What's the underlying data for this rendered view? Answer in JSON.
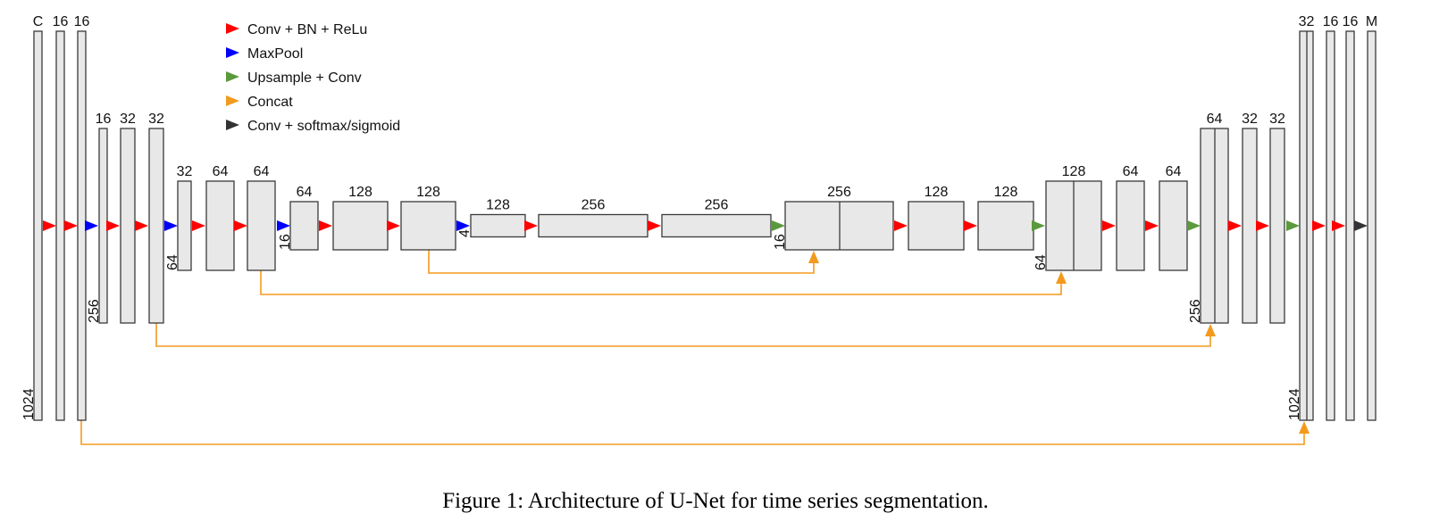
{
  "caption": "Figure 1: Architecture of U-Net for time series segmentation.",
  "colors": {
    "conv_bn_relu": "#ff0000",
    "maxpool": "#0000ff",
    "upsample_conv": "#5a9a3c",
    "concat": "#f39a1e",
    "conv_softmax": "#333333",
    "block_fill": "#e8e8e8"
  },
  "legend": [
    {
      "label": "Conv + BN + ReLu",
      "color_key": "conv_bn_relu"
    },
    {
      "label": "MaxPool",
      "color_key": "maxpool"
    },
    {
      "label": "Upsample + Conv",
      "color_key": "upsample_conv"
    },
    {
      "label": "Concat",
      "color_key": "concat"
    },
    {
      "label": "Conv + softmax/sigmoid",
      "color_key": "conv_softmax"
    }
  ],
  "channel_labels": [
    "C",
    "16",
    "16",
    "16",
    "32",
    "32",
    "32",
    "64",
    "64",
    "64",
    "128",
    "128",
    "128",
    "256",
    "256",
    "256",
    "128",
    "128",
    "128",
    "64",
    "64",
    "64",
    "32",
    "32",
    "32",
    "16",
    "16",
    "M"
  ],
  "length_labels": [
    "1024",
    "256",
    "64",
    "16",
    "4",
    "16",
    "64",
    "256",
    "1024"
  ],
  "operations": [
    "conv_bn_relu",
    "conv_bn_relu",
    "maxpool",
    "conv_bn_relu",
    "conv_bn_relu",
    "maxpool",
    "conv_bn_relu",
    "conv_bn_relu",
    "maxpool",
    "conv_bn_relu",
    "conv_bn_relu",
    "maxpool",
    "conv_bn_relu",
    "conv_bn_relu",
    "upsample_conv",
    "conv_bn_relu",
    "conv_bn_relu",
    "upsample_conv",
    "conv_bn_relu",
    "conv_bn_relu",
    "upsample_conv",
    "conv_bn_relu",
    "conv_bn_relu",
    "upsample_conv",
    "conv_bn_relu",
    "conv_bn_relu",
    "conv_softmax"
  ]
}
